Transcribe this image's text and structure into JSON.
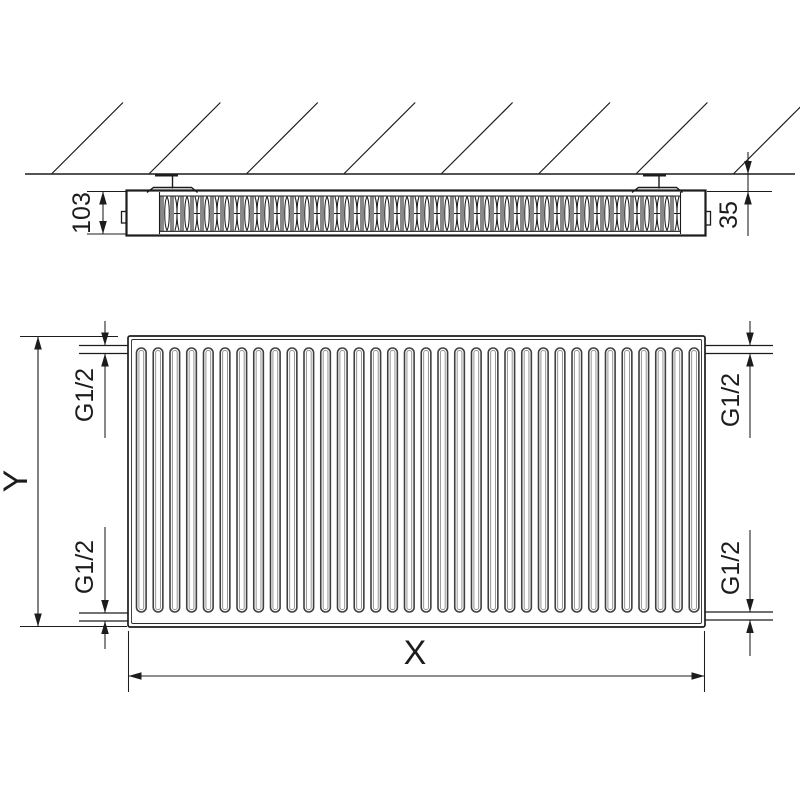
{
  "colors": {
    "line": "#1c1c1c",
    "groove_outer": "#3f3f3f",
    "groove_inner": "#909090",
    "background": "#ffffff"
  },
  "side_view": {
    "depth": "103",
    "wall_clearance": "35"
  },
  "front_view": {
    "height": "Y",
    "width": "X",
    "connections": {
      "top_left": "G1/2",
      "bottom_left": "G1/2",
      "top_right": "G1/2",
      "bottom_right": "G1/2"
    }
  }
}
